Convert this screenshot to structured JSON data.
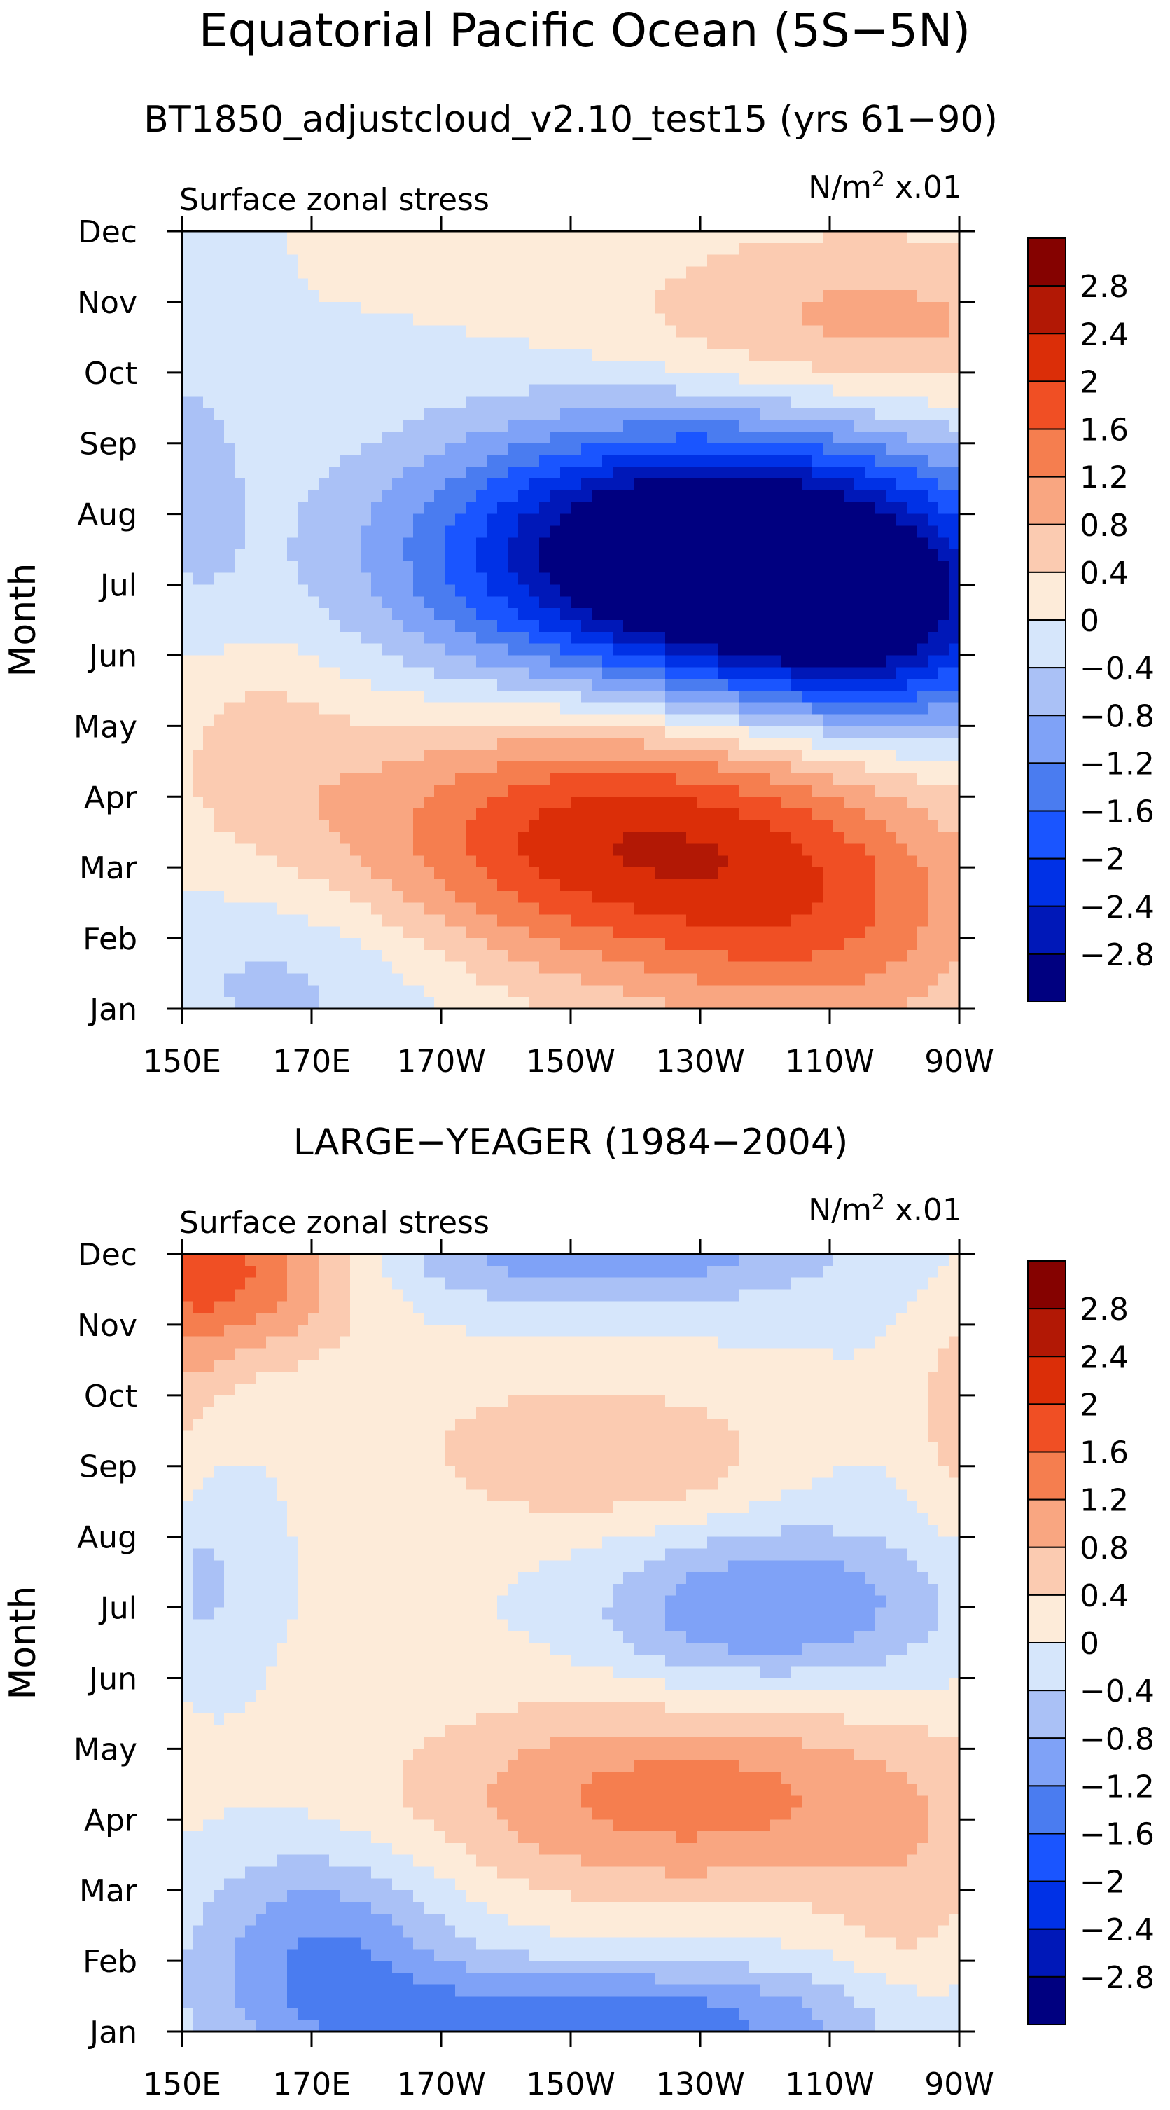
{
  "figure": {
    "title": "Equatorial Pacific Ocean (5S−5N)"
  },
  "chart_data": [
    {
      "type": "heatmap",
      "title": "BT1850_adjustcloud_v2.10_test15 (yrs 61−90)",
      "left_label": "Surface zonal stress",
      "right_label": "N/m",
      "units_sup": "2",
      "units_suffix": " x.01",
      "ylabel": "Month",
      "x_ticks": [
        "150E",
        "170E",
        "170W",
        "150W",
        "130W",
        "110W",
        "90W"
      ],
      "y_ticks": [
        "Jan",
        "Feb",
        "Mar",
        "Apr",
        "May",
        "Jun",
        "Jul",
        "Aug",
        "Sep",
        "Oct",
        "Nov",
        "Dec"
      ],
      "xlim_degE": [
        150,
        270
      ],
      "ylim_month": [
        1,
        12
      ],
      "features": [
        {
          "lon": 232,
          "month": 7.4,
          "amp": -4.2,
          "sx": 30,
          "sy": 1.3
        },
        {
          "lon": 258,
          "month": 6.2,
          "amp": -1.5,
          "sx": 18,
          "sy": 1.0
        },
        {
          "lon": 218,
          "month": 3.4,
          "amp": 2.3,
          "sx": 30,
          "sy": 1.3
        },
        {
          "lon": 250,
          "month": 2.0,
          "amp": 1.0,
          "sx": 20,
          "sy": 1.2
        },
        {
          "lon": 255,
          "month": 10.6,
          "amp": 1.0,
          "sx": 28,
          "sy": 1.0
        },
        {
          "lon": 162,
          "month": 4.8,
          "amp": 0.5,
          "sx": 10,
          "sy": 1.0
        },
        {
          "lon": 168,
          "month": 1.5,
          "amp": -0.6,
          "sx": 18,
          "sy": 1.0
        },
        {
          "lon": 152,
          "month": 8.5,
          "amp": -0.5,
          "sx": 6,
          "sy": 1.5
        }
      ]
    },
    {
      "type": "heatmap",
      "title": "LARGE−YEAGER (1984−2004)",
      "left_label": "Surface zonal stress",
      "right_label": "N/m",
      "units_sup": "2",
      "units_suffix": " x.01",
      "ylabel": "Month",
      "x_ticks": [
        "150E",
        "170E",
        "170W",
        "150W",
        "130W",
        "110W",
        "90W"
      ],
      "y_ticks": [
        "Jan",
        "Feb",
        "Mar",
        "Apr",
        "May",
        "Jun",
        "Jul",
        "Aug",
        "Sep",
        "Oct",
        "Nov",
        "Dec"
      ],
      "xlim_degE": [
        150,
        270
      ],
      "ylim_month": [
        1,
        12
      ],
      "features": [
        {
          "lon": 158,
          "month": 11.8,
          "amp": 1.7,
          "sx": 13,
          "sy": 0.9
        },
        {
          "lon": 228,
          "month": 4.3,
          "amp": 1.4,
          "sx": 30,
          "sy": 1.0
        },
        {
          "lon": 202,
          "month": 9.2,
          "amp": 0.55,
          "sx": 14,
          "sy": 0.8
        },
        {
          "lon": 225,
          "month": 9.1,
          "amp": 0.6,
          "sx": 12,
          "sy": 0.7
        },
        {
          "lon": 172,
          "month": 2.2,
          "amp": -1.2,
          "sx": 14,
          "sy": 1.0
        },
        {
          "lon": 215,
          "month": 1.1,
          "amp": -1.6,
          "sx": 30,
          "sy": 0.6
        },
        {
          "lon": 216,
          "month": 12.0,
          "amp": -1.1,
          "sx": 25,
          "sy": 0.5
        },
        {
          "lon": 248,
          "month": 7.0,
          "amp": -1.0,
          "sx": 15,
          "sy": 0.8
        },
        {
          "lon": 228,
          "month": 6.9,
          "amp": -0.6,
          "sx": 12,
          "sy": 0.8
        },
        {
          "lon": 152,
          "month": 7.5,
          "amp": -0.9,
          "sx": 5,
          "sy": 1.2
        },
        {
          "lon": 150,
          "month": 9.0,
          "amp": 0.6,
          "sx": 5,
          "sy": 2.5
        },
        {
          "lon": 270,
          "month": 9.8,
          "amp": 0.6,
          "sx": 5,
          "sy": 1.2
        },
        {
          "lon": 262,
          "month": 2.5,
          "amp": 0.4,
          "sx": 8,
          "sy": 1.2
        }
      ]
    }
  ],
  "colorbar": {
    "labels": [
      "2.8",
      "2.4",
      "2",
      "1.6",
      "1.2",
      "0.8",
      "0.4",
      "0",
      "−0.4",
      "−0.8",
      "−1.2",
      "−1.6",
      "−2",
      "−2.4",
      "−2.8"
    ],
    "colors": [
      "#000080",
      "#0018b8",
      "#0031e6",
      "#1a55ff",
      "#4a7cf0",
      "#7fa2f7",
      "#aac1f6",
      "#d6e6fb",
      "#fdebd9",
      "#fbcbb1",
      "#f9a681",
      "#f57e4f",
      "#f04f24",
      "#db2e08",
      "#b21805",
      "#850200"
    ],
    "levels": [
      -2.8,
      -2.4,
      -2,
      -1.6,
      -1.2,
      -0.8,
      -0.4,
      0,
      0.4,
      0.8,
      1.2,
      1.6,
      2,
      2.4,
      2.8
    ]
  }
}
